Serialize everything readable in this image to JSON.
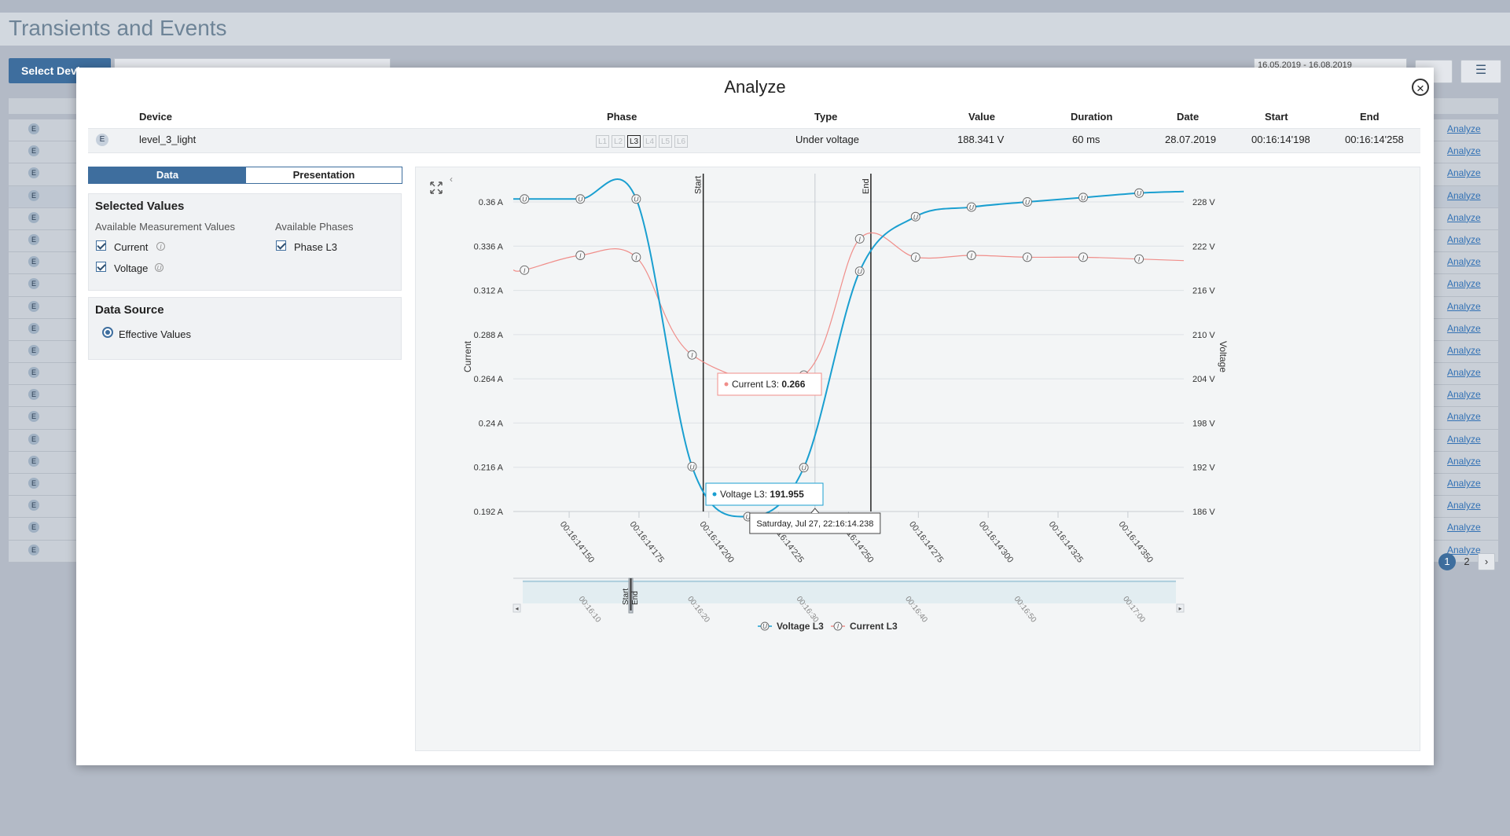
{
  "app": {
    "title": "Transients and Events",
    "select_device_label": "Select Devic",
    "search_placeholder": "",
    "date_range": "16.05.2019 - 16.08.2019",
    "row_badge": "E",
    "row_action": "Analyze",
    "row_count": 20,
    "pagination": {
      "pages": [
        "1",
        "2"
      ],
      "active": "1",
      "next": "›"
    }
  },
  "modal": {
    "title": "Analyze",
    "close": "×",
    "columns": {
      "device": "Device",
      "phase": "Phase",
      "type": "Type",
      "value": "Value",
      "duration": "Duration",
      "date": "Date",
      "start": "Start",
      "end": "End"
    },
    "event": {
      "badge": "E",
      "device": "level_3_light",
      "phases": [
        "L1",
        "L2",
        "L3",
        "L4",
        "L5",
        "L6"
      ],
      "active_phase": "L3",
      "type": "Under voltage",
      "value": "188.341 V",
      "duration": "60 ms",
      "date": "28.07.2019",
      "start": "00:16:14'198",
      "end": "00:16:14'258"
    },
    "tabs": {
      "data": "Data",
      "presentation": "Presentation"
    },
    "selected_values": {
      "title": "Selected Values",
      "measurements_label": "Available Measurement Values",
      "phases_label": "Available Phases",
      "measurements": [
        {
          "label": "Current",
          "symbol": "I",
          "checked": true
        },
        {
          "label": "Voltage",
          "symbol": "U",
          "checked": true
        }
      ],
      "phase_options": [
        {
          "label": "Phase L3",
          "checked": true
        }
      ]
    },
    "data_source": {
      "title": "Data Source",
      "option": "Effective Values",
      "selected": true
    }
  },
  "chart_data": {
    "type": "line",
    "x_tick_labels": [
      "00:16:14'150",
      "00:16:14'175",
      "00:16:14'200",
      "00:16:14'225",
      "00:16:14'250",
      "00:16:14'275",
      "00:16:14'300",
      "00:16:14'325",
      "00:16:14'350"
    ],
    "x_ms": {
      "min": 130,
      "max": 370
    },
    "y_left": {
      "label": "Current",
      "unit": "A",
      "ticks": [
        "0.36 A",
        "0.336 A",
        "0.312 A",
        "0.288 A",
        "0.264 A",
        "0.24 A",
        "0.216 A",
        "0.192 A"
      ],
      "min": 0.192,
      "max": 0.36
    },
    "y_right": {
      "label": "Voltage",
      "unit": "V",
      "ticks": [
        "228 V",
        "222 V",
        "216 V",
        "210 V",
        "204 V",
        "198 V",
        "192 V",
        "186 V"
      ],
      "min": 186,
      "max": 228
    },
    "plot_bands": [
      {
        "label": "Start",
        "x_ms": 198
      },
      {
        "label": "End",
        "x_ms": 258
      }
    ],
    "crosshair_x_ms": 238,
    "crosshair_label": "Saturday, Jul 27, 22:16:14.238",
    "series": [
      {
        "name": "Voltage L3",
        "symbol": "U",
        "color": "#1a9fd0",
        "axis": "right",
        "x_ms": [
          134,
          154,
          174,
          194,
          214,
          234,
          254,
          274,
          294,
          314,
          334,
          354
        ],
        "values": [
          228.4,
          228.4,
          228.4,
          192.1,
          185.3,
          191.955,
          218.6,
          226.0,
          227.3,
          228.0,
          228.6,
          229.2
        ]
      },
      {
        "name": "Current L3",
        "symbol": "I",
        "color": "#f08e8a",
        "axis": "left",
        "x_ms": [
          134,
          154,
          174,
          194,
          234,
          254,
          274,
          294,
          314,
          334,
          354
        ],
        "values": [
          0.323,
          0.331,
          0.33,
          0.277,
          0.266,
          0.34,
          0.33,
          0.331,
          0.33,
          0.33,
          0.329
        ]
      }
    ],
    "tooltips": [
      {
        "series": "Current L3",
        "label": "Current L3:",
        "value": "0.266"
      },
      {
        "series": "Voltage L3",
        "label": "Voltage L3:",
        "value": "191.955"
      }
    ],
    "navigator": {
      "tick_labels": [
        "00:16:10",
        "00:16:20",
        "00:16:30",
        "00:16:40",
        "00:16:50",
        "00:17:00"
      ],
      "band_labels": [
        "Start",
        "End"
      ]
    },
    "legend": [
      "Voltage L3",
      "Current L3"
    ],
    "legend_position": "bottom-center",
    "grid": true
  }
}
